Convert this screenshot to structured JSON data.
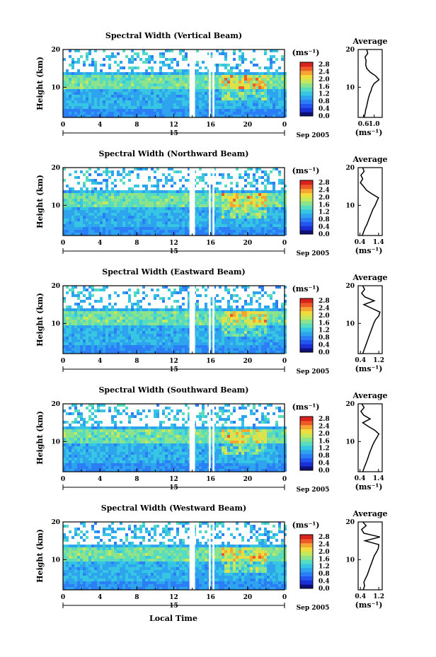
{
  "figure": {
    "common_xlabel": "Local Time",
    "date_label": "Sep 2005",
    "day_label": "15"
  },
  "colors": {
    "colormap": [
      "#10107a",
      "#1a2fd6",
      "#2356f0",
      "#2b7ef5",
      "#2ea4ee",
      "#36c6e3",
      "#57dcc0",
      "#8de38a",
      "#c7e85a",
      "#f0dc3c",
      "#f5a632",
      "#ee5a28",
      "#d8221e"
    ],
    "profile_line": "#000000",
    "gap": "#ffffff"
  },
  "chart_data": [
    {
      "type": "heatmap",
      "title": "Spectral Width (Vertical Beam)",
      "ylabel": "Height (km)",
      "xlim": [
        0,
        24
      ],
      "ylim": [
        2,
        20
      ],
      "xticks": [
        "0",
        "4",
        "8",
        "12",
        "16",
        "20",
        "0"
      ],
      "yticks": [
        "20",
        "10"
      ],
      "colorbar": {
        "unit": "(ms⁻¹)",
        "ticks": [
          "2.8",
          "2.4",
          "2.0",
          "1.6",
          "1.2",
          "0.8",
          "0.4",
          "0.0"
        ]
      },
      "data_gaps_hours": [
        [
          13.7,
          14.3
        ],
        [
          15.8,
          16.0
        ],
        [
          16.2,
          16.4
        ]
      ],
      "profile": {
        "title": "Average",
        "xlabel": "(ms⁻¹)",
        "xticks": [
          "0.6",
          "1.0"
        ],
        "xlim": [
          0.4,
          1.3
        ],
        "heights_km": [
          2,
          3,
          4,
          5,
          6,
          7,
          8,
          9,
          10,
          11,
          12,
          13,
          14,
          15,
          16,
          17,
          18,
          19,
          20
        ],
        "values": [
          0.62,
          0.66,
          0.68,
          0.72,
          0.75,
          0.78,
          0.82,
          0.88,
          0.92,
          1.0,
          1.18,
          1.05,
          0.85,
          0.72,
          0.68,
          0.7,
          0.66,
          0.76,
          0.72
        ]
      }
    },
    {
      "type": "heatmap",
      "title": "Spectral Width (Northward Beam)",
      "ylabel": "Height (km)",
      "xlim": [
        0,
        24
      ],
      "ylim": [
        2,
        20
      ],
      "xticks": [
        "0",
        "4",
        "8",
        "12",
        "16",
        "20",
        "0"
      ],
      "yticks": [
        "20",
        "10"
      ],
      "colorbar": {
        "unit": "(ms⁻¹)",
        "ticks": [
          "2.8",
          "2.4",
          "2.0",
          "1.6",
          "1.2",
          "0.8",
          "0.4",
          "0.0"
        ]
      },
      "data_gaps_hours": [
        [
          13.7,
          14.3
        ],
        [
          15.8,
          16.0
        ],
        [
          16.2,
          16.4
        ]
      ],
      "profile": {
        "title": "Average",
        "xlabel": "(ms⁻¹)",
        "xticks": [
          "0.4",
          "1.4"
        ],
        "xlim": [
          0.3,
          1.6
        ],
        "heights_km": [
          2,
          3,
          4,
          5,
          6,
          7,
          8,
          9,
          10,
          11,
          12,
          13,
          14,
          15,
          16,
          17,
          18,
          19,
          20
        ],
        "values": [
          0.52,
          0.6,
          0.68,
          0.78,
          0.86,
          0.94,
          1.02,
          1.1,
          1.22,
          1.3,
          1.4,
          1.05,
          0.75,
          0.6,
          0.42,
          0.55,
          0.45,
          0.62,
          0.55
        ]
      }
    },
    {
      "type": "heatmap",
      "title": "Spectral Width (Eastward Beam)",
      "ylabel": "Height (km)",
      "xlim": [
        0,
        24
      ],
      "ylim": [
        2,
        20
      ],
      "xticks": [
        "0",
        "4",
        "8",
        "12",
        "16",
        "20",
        "0"
      ],
      "yticks": [
        "20",
        "10"
      ],
      "colorbar": {
        "unit": "(ms⁻¹)",
        "ticks": [
          "2.8",
          "2.4",
          "2.0",
          "1.6",
          "1.2",
          "0.8",
          "0.4",
          "0.0"
        ]
      },
      "data_gaps_hours": [
        [
          13.7,
          14.3
        ],
        [
          15.8,
          16.0
        ],
        [
          16.2,
          16.4
        ]
      ],
      "profile": {
        "title": "Average",
        "xlabel": "(ms⁻¹)",
        "xticks": [
          "0.4",
          "1.2"
        ],
        "xlim": [
          0.3,
          1.35
        ],
        "heights_km": [
          2,
          3,
          4,
          5,
          6,
          7,
          8,
          9,
          10,
          11,
          12,
          13,
          14,
          15,
          16,
          17,
          18,
          19,
          20
        ],
        "values": [
          0.5,
          0.56,
          0.62,
          0.68,
          0.74,
          0.8,
          0.86,
          0.92,
          0.98,
          1.06,
          1.2,
          1.25,
          0.9,
          0.55,
          1.0,
          0.6,
          0.45,
          0.58,
          0.5
        ]
      }
    },
    {
      "type": "heatmap",
      "title": "Spectral Width (Southward Beam)",
      "ylabel": "Height (km)",
      "xlim": [
        0,
        24
      ],
      "ylim": [
        2,
        20
      ],
      "xticks": [
        "0",
        "4",
        "8",
        "12",
        "16",
        "20",
        "0"
      ],
      "yticks": [
        "20",
        "10"
      ],
      "colorbar": {
        "unit": "(ms⁻¹)",
        "ticks": [
          "2.8",
          "2.4",
          "2.0",
          "1.6",
          "1.2",
          "0.8",
          "0.4",
          "0.0"
        ]
      },
      "data_gaps_hours": [
        [
          13.7,
          14.3
        ],
        [
          15.8,
          16.0
        ],
        [
          16.2,
          16.4
        ]
      ],
      "profile": {
        "title": "Average",
        "xlabel": "(ms⁻¹)",
        "xticks": [
          "0.4",
          "1.4"
        ],
        "xlim": [
          0.3,
          1.6
        ],
        "heights_km": [
          2,
          3,
          4,
          5,
          6,
          7,
          8,
          9,
          10,
          11,
          12,
          13,
          14,
          15,
          16,
          17,
          18,
          19,
          20
        ],
        "values": [
          0.55,
          0.62,
          0.7,
          0.78,
          0.85,
          0.92,
          1.0,
          1.08,
          1.18,
          1.3,
          1.42,
          1.2,
          0.85,
          0.55,
          0.95,
          0.6,
          0.45,
          0.62,
          0.5
        ]
      }
    },
    {
      "type": "heatmap",
      "title": "Spectral Width (Westward Beam)",
      "ylabel": "Height (km)",
      "xlim": [
        0,
        24
      ],
      "ylim": [
        2,
        20
      ],
      "xticks": [
        "0",
        "4",
        "8",
        "12",
        "16",
        "20",
        "0"
      ],
      "yticks": [
        "20",
        "10"
      ],
      "colorbar": {
        "unit": "(ms⁻¹)",
        "ticks": [
          "2.8",
          "2.4",
          "2.0",
          "1.6",
          "1.2",
          "0.8",
          "0.4",
          "0.0"
        ]
      },
      "data_gaps_hours": [
        [
          13.7,
          14.3
        ],
        [
          15.8,
          16.0
        ],
        [
          16.2,
          16.4
        ]
      ],
      "profile": {
        "title": "Average",
        "xlabel": "(ms⁻¹)",
        "xticks": [
          "0.4",
          "1.2"
        ],
        "xlim": [
          0.3,
          1.35
        ],
        "heights_km": [
          2,
          3,
          4,
          5,
          6,
          7,
          8,
          9,
          10,
          11,
          12,
          13,
          14,
          15,
          16,
          17,
          18,
          19,
          20
        ],
        "values": [
          0.52,
          0.58,
          0.55,
          0.62,
          0.7,
          0.76,
          0.82,
          0.88,
          0.94,
          1.0,
          1.1,
          1.18,
          1.2,
          0.6,
          1.25,
          0.55,
          0.45,
          0.65,
          0.5
        ]
      }
    }
  ]
}
